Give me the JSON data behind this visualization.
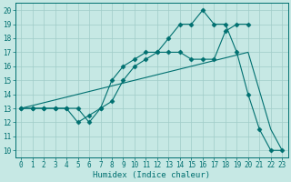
{
  "xlabel": "Humidex (Indice chaleur)",
  "background_color": "#c6e8e4",
  "grid_color": "#a0ccc8",
  "line_color": "#007070",
  "xlim": [
    -0.5,
    23.5
  ],
  "ylim": [
    9.5,
    20.5
  ],
  "yticks": [
    10,
    11,
    12,
    13,
    14,
    15,
    16,
    17,
    18,
    19,
    20
  ],
  "xticks": [
    0,
    1,
    2,
    3,
    4,
    5,
    6,
    7,
    8,
    9,
    10,
    11,
    12,
    13,
    14,
    15,
    16,
    17,
    18,
    19,
    20,
    21,
    22,
    23
  ],
  "line1_x": [
    0,
    1,
    2,
    3,
    4,
    5,
    6,
    7,
    8,
    9,
    10,
    11,
    12,
    13,
    14,
    15,
    16,
    17,
    18,
    19,
    20,
    21,
    22,
    23
  ],
  "line1_y": [
    13,
    13,
    13,
    13,
    13,
    12,
    12.5,
    13,
    15,
    16,
    16.5,
    17,
    17,
    18,
    19,
    19,
    20,
    19,
    19,
    17,
    14,
    11.5,
    10,
    10
  ],
  "line2_x": [
    0,
    1,
    2,
    3,
    4,
    5,
    6,
    7,
    8,
    9,
    10,
    11,
    12,
    13,
    14,
    15,
    16,
    17,
    18,
    19,
    20
  ],
  "line2_y": [
    13,
    13,
    13,
    13,
    13,
    13,
    12,
    13,
    13.5,
    15,
    16,
    16.5,
    17,
    17,
    17,
    16.5,
    16.5,
    16.5,
    18.5,
    19,
    19
  ],
  "line3_x": [
    0,
    20,
    22,
    23
  ],
  "line3_y": [
    13,
    17,
    11.5,
    10
  ]
}
